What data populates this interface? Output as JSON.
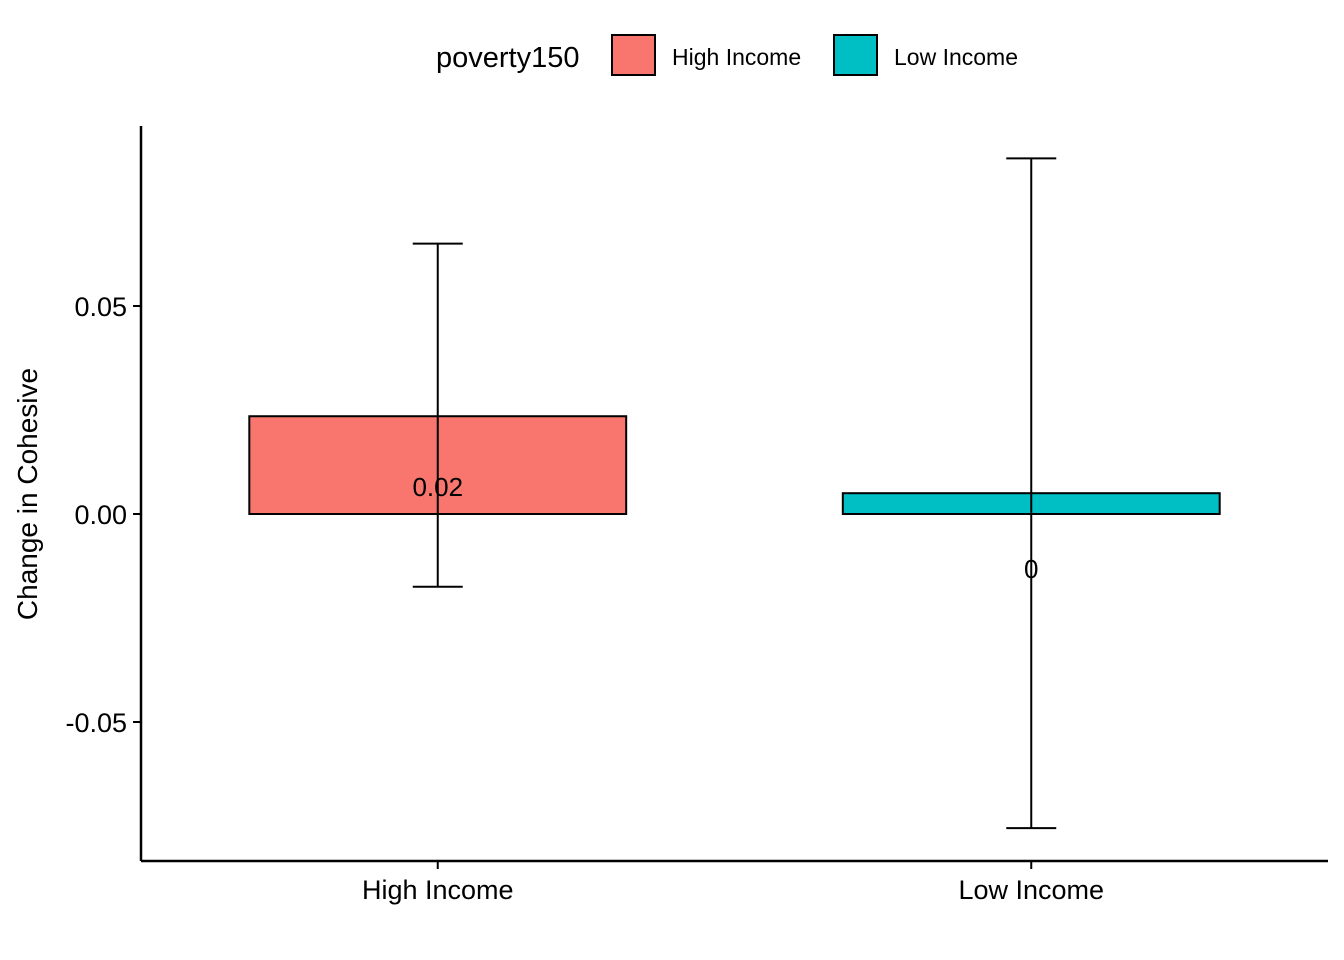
{
  "chart_data": {
    "type": "bar",
    "title": "",
    "xlabel": "",
    "ylabel": "Change in Cohesive",
    "categories": [
      "High Income",
      "Low Income"
    ],
    "values": [
      0.0235,
      0.005
    ],
    "error_low": [
      -0.0175,
      -0.0755
    ],
    "error_high": [
      0.065,
      0.0855
    ],
    "data_labels": [
      "0.02",
      "0"
    ],
    "ylim": [
      -0.083,
      0.093
    ],
    "yticks": [
      -0.05,
      0.0,
      0.05
    ],
    "ytick_labels": [
      "-0.05",
      "0.00",
      "0.05"
    ],
    "grid": false,
    "legend": {
      "title": "poverty150",
      "position": "top",
      "entries": [
        {
          "label": "High Income",
          "color": "#F8766D"
        },
        {
          "label": "Low Income",
          "color": "#00BFC4"
        }
      ]
    },
    "colors": [
      "#F8766D",
      "#00BFC4"
    ]
  }
}
